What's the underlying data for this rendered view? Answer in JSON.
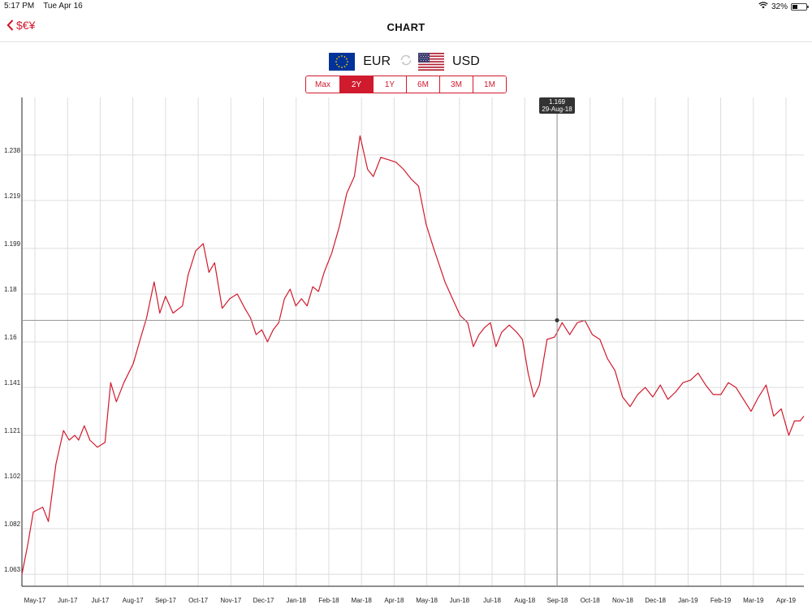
{
  "status_bar": {
    "time": "5:17 PM",
    "date": "Tue Apr 16",
    "battery": "32%"
  },
  "nav": {
    "back_label": "$€¥",
    "title": "CHART"
  },
  "pair": {
    "base": "EUR",
    "quote": "USD"
  },
  "ranges": [
    {
      "label": "Max",
      "active": false
    },
    {
      "label": "2Y",
      "active": true
    },
    {
      "label": "1Y",
      "active": false
    },
    {
      "label": "6M",
      "active": false
    },
    {
      "label": "3M",
      "active": false
    },
    {
      "label": "1M",
      "active": false
    }
  ],
  "colors": {
    "accent": "#d01a2d",
    "line": "#d01a2d",
    "grid": "#dddddd",
    "tooltip_bg": "#333333"
  },
  "tooltip": {
    "value": "1.169",
    "date": "29-Aug-18"
  },
  "chart_data": {
    "type": "line",
    "title": "",
    "xlabel": "",
    "ylabel": "",
    "grid": true,
    "ylim": [
      1.058,
      1.262
    ],
    "yticks": [
      "1.063",
      "1.082",
      "1.102",
      "1.121",
      "1.141",
      "1.16",
      "1.18",
      "1.199",
      "1.219",
      "1.238"
    ],
    "xticks": [
      "May-17",
      "Jun-17",
      "Jul-17",
      "Aug-17",
      "Sep-17",
      "Oct-17",
      "Nov-17",
      "Dec-17",
      "Jan-18",
      "Feb-18",
      "Mar-18",
      "Apr-18",
      "May-18",
      "Jun-18",
      "Jul-18",
      "Aug-18",
      "Sep-18",
      "Oct-18",
      "Nov-18",
      "Dec-18",
      "Jan-19",
      "Feb-19",
      "Mar-19",
      "Apr-19"
    ],
    "series": [
      {
        "values": [
          [
            0,
            1.063
          ],
          [
            1.5,
            1.075
          ],
          [
            3,
            1.089
          ],
          [
            5.5,
            1.091
          ],
          [
            7,
            1.085
          ],
          [
            9,
            1.109
          ],
          [
            11,
            1.123
          ],
          [
            12.5,
            1.119
          ],
          [
            14,
            1.121
          ],
          [
            15,
            1.119
          ],
          [
            16.5,
            1.125
          ],
          [
            18,
            1.119
          ],
          [
            20,
            1.116
          ],
          [
            22,
            1.118
          ],
          [
            23.5,
            1.143
          ],
          [
            25,
            1.135
          ],
          [
            27,
            1.143
          ],
          [
            29.5,
            1.151
          ],
          [
            31.5,
            1.162
          ],
          [
            33,
            1.17
          ],
          [
            35,
            1.185
          ],
          [
            36.5,
            1.172
          ],
          [
            38,
            1.179
          ],
          [
            40,
            1.172
          ],
          [
            42.5,
            1.175
          ],
          [
            44,
            1.188
          ],
          [
            46,
            1.198
          ],
          [
            48,
            1.201
          ],
          [
            49.5,
            1.189
          ],
          [
            51,
            1.193
          ],
          [
            53,
            1.174
          ],
          [
            55,
            1.178
          ],
          [
            57,
            1.18
          ],
          [
            59,
            1.174
          ],
          [
            60.5,
            1.17
          ],
          [
            62,
            1.163
          ],
          [
            63.5,
            1.165
          ],
          [
            65,
            1.16
          ],
          [
            66.5,
            1.165
          ],
          [
            68,
            1.168
          ],
          [
            69.5,
            1.178
          ],
          [
            71,
            1.182
          ],
          [
            72.5,
            1.175
          ],
          [
            74,
            1.178
          ],
          [
            75.5,
            1.175
          ],
          [
            77,
            1.183
          ],
          [
            78.5,
            1.181
          ],
          [
            80,
            1.189
          ],
          [
            82,
            1.197
          ],
          [
            84,
            1.208
          ],
          [
            86,
            1.222
          ],
          [
            88,
            1.229
          ],
          [
            89.5,
            1.246
          ],
          [
            91.5,
            1.232
          ],
          [
            93,
            1.229
          ],
          [
            95,
            1.237
          ],
          [
            97,
            1.236
          ],
          [
            99,
            1.235
          ],
          [
            101,
            1.232
          ],
          [
            103,
            1.228
          ],
          [
            105,
            1.225
          ],
          [
            107,
            1.209
          ],
          [
            109,
            1.199
          ],
          [
            110.5,
            1.192
          ],
          [
            112,
            1.185
          ],
          [
            114,
            1.178
          ],
          [
            116,
            1.171
          ],
          [
            118,
            1.168
          ],
          [
            119.5,
            1.158
          ],
          [
            121,
            1.163
          ],
          [
            122.5,
            1.166
          ],
          [
            124,
            1.168
          ],
          [
            125.5,
            1.158
          ],
          [
            127,
            1.164
          ],
          [
            129,
            1.167
          ],
          [
            131,
            1.164
          ],
          [
            132.5,
            1.161
          ],
          [
            134,
            1.147
          ],
          [
            135.5,
            1.137
          ],
          [
            137,
            1.142
          ],
          [
            139,
            1.161
          ],
          [
            141,
            1.162
          ],
          [
            143,
            1.168
          ],
          [
            145,
            1.163
          ],
          [
            147,
            1.168
          ],
          [
            149,
            1.169
          ],
          [
            151,
            1.163
          ],
          [
            153,
            1.161
          ],
          [
            155,
            1.153
          ],
          [
            157,
            1.148
          ],
          [
            159,
            1.137
          ],
          [
            161,
            1.133
          ],
          [
            163,
            1.138
          ],
          [
            165,
            1.141
          ],
          [
            167,
            1.137
          ],
          [
            169,
            1.142
          ],
          [
            171,
            1.136
          ],
          [
            173,
            1.139
          ],
          [
            175,
            1.143
          ],
          [
            177,
            1.144
          ],
          [
            179,
            1.147
          ],
          [
            181,
            1.142
          ],
          [
            183,
            1.138
          ],
          [
            185,
            1.138
          ],
          [
            187,
            1.143
          ],
          [
            189,
            1.141
          ],
          [
            191,
            1.136
          ],
          [
            193,
            1.131
          ],
          [
            195,
            1.137
          ],
          [
            197,
            1.142
          ],
          [
            199,
            1.129
          ],
          [
            201,
            1.132
          ],
          [
            203,
            1.121
          ],
          [
            204.5,
            1.127
          ],
          [
            206,
            1.127
          ],
          [
            207,
            1.129
          ]
        ]
      }
    ]
  }
}
